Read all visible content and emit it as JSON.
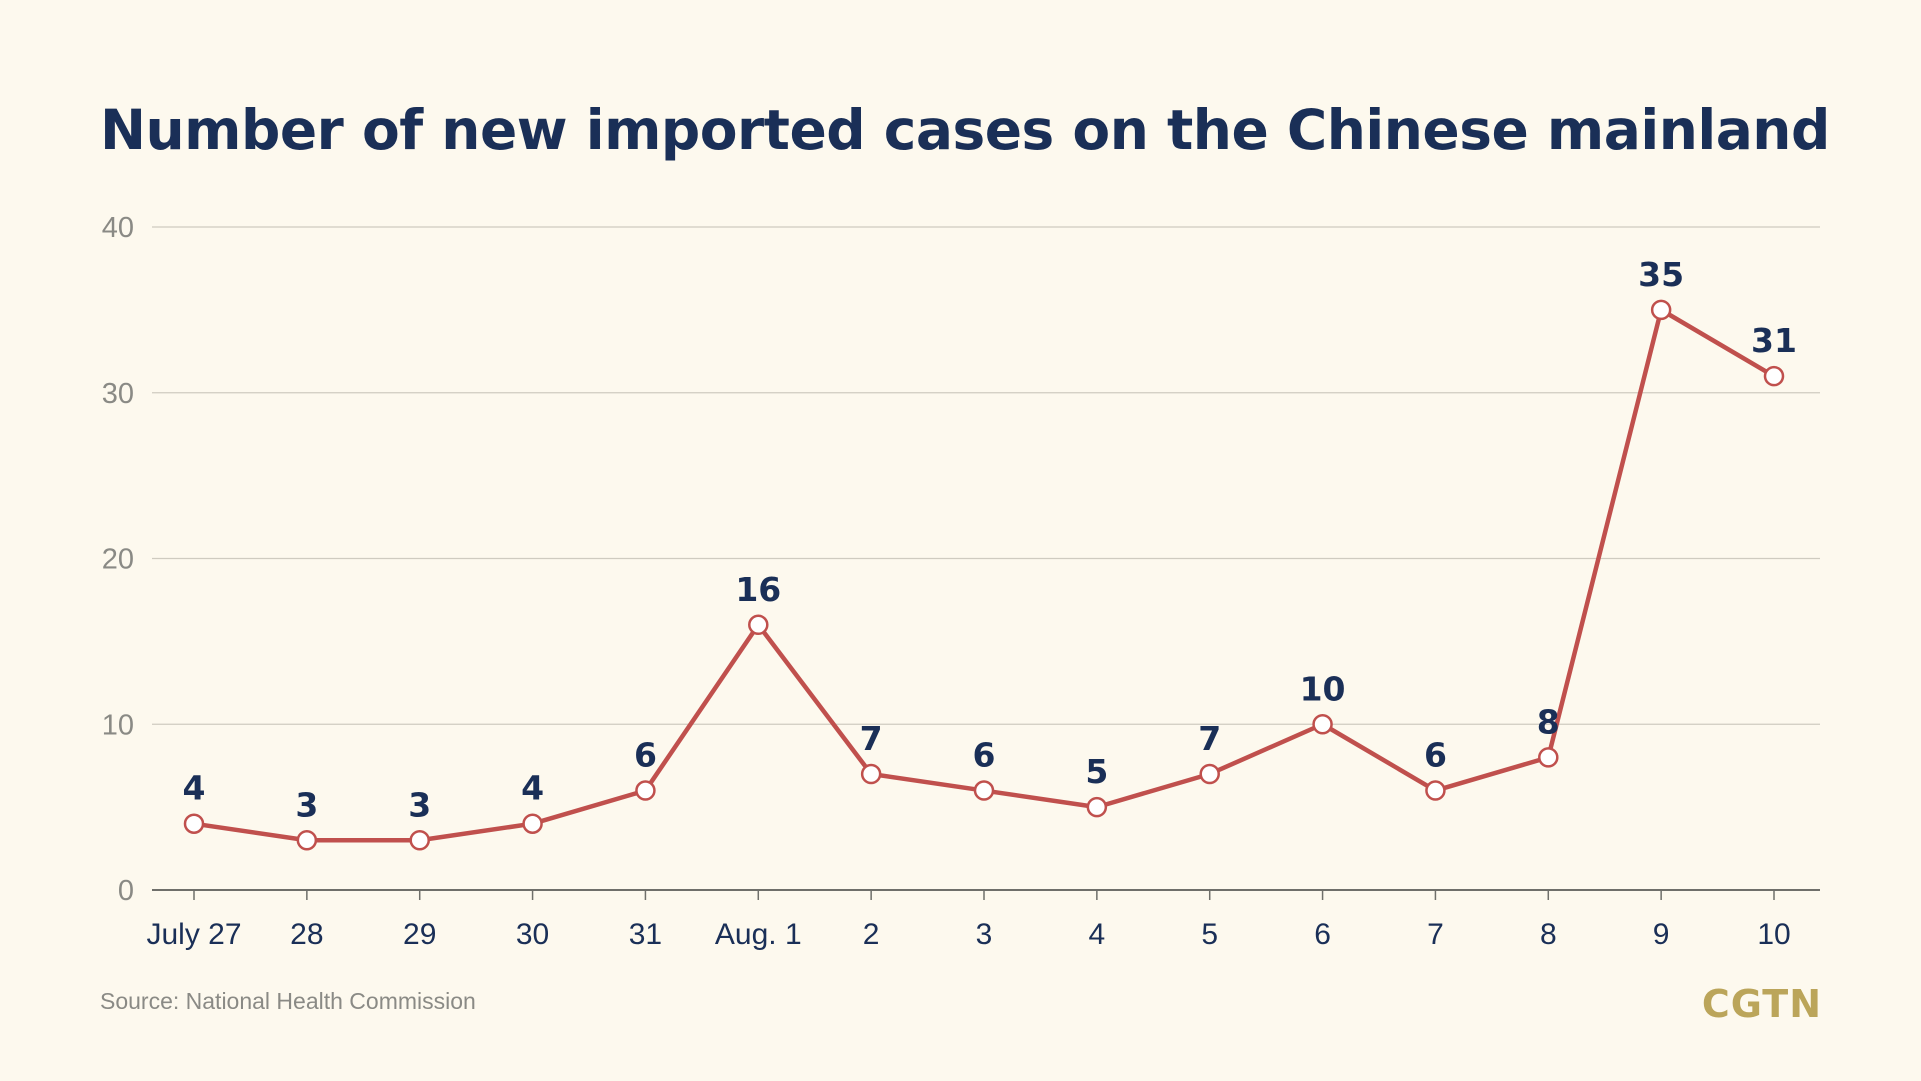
{
  "title": "Number of new imported cases on the Chinese mainland",
  "source": "Source: National Health Commission",
  "logo": "CGTN",
  "colors": {
    "background": "#fdf9ee",
    "title": "#1a2f57",
    "line": "#c0504d",
    "grid": "#cfcbc0",
    "axis": "#8a8a85",
    "logo": "#bba55a"
  },
  "chart_data": {
    "type": "line",
    "title": "Number of new imported cases on the Chinese mainland",
    "xlabel": "",
    "ylabel": "",
    "categories": [
      "July 27",
      "28",
      "29",
      "30",
      "31",
      "Aug. 1",
      "2",
      "3",
      "4",
      "5",
      "6",
      "7",
      "8",
      "9",
      "10"
    ],
    "values": [
      4,
      3,
      3,
      4,
      6,
      16,
      7,
      6,
      5,
      7,
      10,
      6,
      8,
      35,
      31
    ],
    "data_labels": [
      "4",
      "3",
      "3",
      "4",
      "6",
      "16",
      "7",
      "6",
      "5",
      "7",
      "10",
      "6",
      "8",
      "35",
      "31"
    ],
    "ylim": [
      0,
      40
    ],
    "yticks": [
      0,
      10,
      20,
      30,
      40
    ],
    "grid": true,
    "legend": "none"
  }
}
